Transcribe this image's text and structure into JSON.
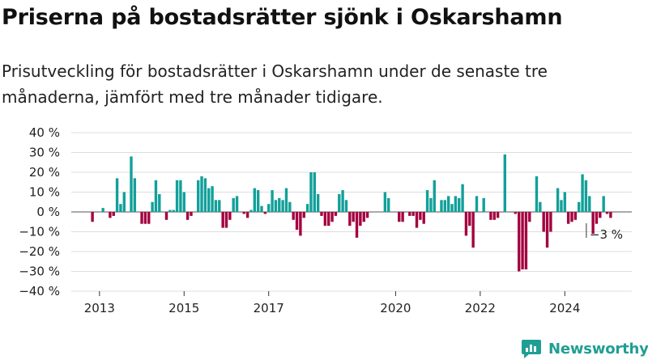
{
  "title": "Priserna på bostadsrätter sjönk i Oskarshamn",
  "subtitle": "Prisutveckling för bostadsrätter i Oskarshamn under de senaste tre månaderna, jämfört med tre månader tidigare.",
  "brand": {
    "name": "Newsworthy",
    "color": "#1f9e94",
    "icon": "newsworthy-logo-icon"
  },
  "colors": {
    "positive": "#12a09a",
    "negative": "#a3003f",
    "grid": "#dddddd"
  },
  "chart_data": {
    "type": "bar",
    "title": "Priserna på bostadsrätter sjönk i Oskarshamn",
    "xlabel": "",
    "ylabel": "",
    "ylim": [
      -40,
      40
    ],
    "yticks": [
      -40,
      -30,
      -20,
      -10,
      0,
      10,
      20,
      30,
      40
    ],
    "ytick_labels": [
      "−40 %",
      "−30 %",
      "−20 %",
      "−10 %",
      "0 %",
      "10 %",
      "20 %",
      "30 %",
      "40 %"
    ],
    "xlim": [
      "2012-05",
      "2025-08"
    ],
    "xticks": [
      "2013",
      "2015",
      "2017",
      "2020",
      "2022",
      "2024"
    ],
    "x_start": "2012-06",
    "frequency": "monthly",
    "last_label": "−3 %",
    "values": [
      0,
      0,
      0,
      0,
      0,
      -5,
      0,
      0,
      2,
      0,
      -3,
      -2,
      17,
      4,
      10,
      0,
      28,
      17,
      0,
      -6,
      -6,
      -6,
      5,
      16,
      9,
      0,
      -4,
      1,
      1,
      16,
      16,
      10,
      -4,
      -2,
      0,
      16,
      18,
      17,
      12,
      13,
      6,
      6,
      -8,
      -8,
      -4,
      7,
      8,
      0,
      -1,
      -3,
      1,
      12,
      11,
      3,
      -1,
      4,
      11,
      6,
      7,
      6,
      12,
      5,
      -4,
      -9,
      -12,
      -3,
      4,
      20,
      20,
      9,
      -2,
      -7,
      -7,
      -5,
      -2,
      9,
      11,
      6,
      -7,
      -5,
      -13,
      -7,
      -5,
      -3,
      0,
      0,
      0,
      0,
      10,
      7,
      0,
      0,
      -5,
      -5,
      0,
      -2,
      -2,
      -8,
      -4,
      -6,
      11,
      7,
      16,
      0,
      6,
      6,
      8,
      4,
      8,
      7,
      14,
      -12,
      -7,
      -18,
      8,
      0,
      7,
      0,
      -4,
      -4,
      -3,
      0,
      29,
      0,
      0,
      -1,
      -30,
      -29,
      -29,
      -5,
      0,
      18,
      5,
      -10,
      -18,
      -10,
      0,
      12,
      6,
      10,
      -6,
      -5,
      -4,
      5,
      19,
      16,
      8,
      -11,
      -6,
      -3,
      8,
      -1,
      -3
    ]
  }
}
